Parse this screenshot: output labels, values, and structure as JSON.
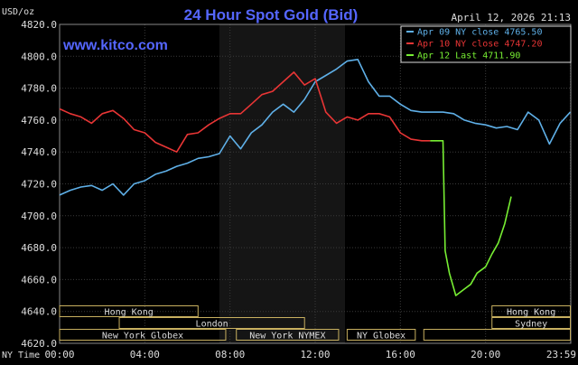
{
  "chart_data": {
    "type": "line",
    "title": "24 Hour Spot Gold (Bid)",
    "watermark": "www.kitco.com",
    "date_label": "April 12, 2026 21:13",
    "ylabel": "USD/oz",
    "xlabel": "NY Time",
    "ylim": [
      4620,
      4820
    ],
    "y_ticks": [
      "4820.0",
      "4800.0",
      "4780.0",
      "4760.0",
      "4740.0",
      "4720.0",
      "4700.0",
      "4680.0",
      "4660.0",
      "4640.0",
      "4620.0"
    ],
    "xlim": [
      0,
      24
    ],
    "x_ticks": [
      {
        "pos": 0,
        "label": "00:00"
      },
      {
        "pos": 4,
        "label": "04:00"
      },
      {
        "pos": 8,
        "label": "08:00"
      },
      {
        "pos": 12,
        "label": "12:00"
      },
      {
        "pos": 16,
        "label": "16:00"
      },
      {
        "pos": 20,
        "label": "20:00"
      },
      {
        "pos": 23.983,
        "label": "23:59"
      }
    ],
    "grid": true,
    "legend_position": "top-right",
    "background": "#000000",
    "plot_background": "#000000",
    "market_shading": [
      {
        "start": 7.5,
        "end": 13.4,
        "color": "#151515"
      }
    ],
    "series": [
      {
        "name": "Apr 09 NY close 4765.50",
        "color": "#5fb0e8",
        "x": [
          0,
          0.5,
          1,
          1.5,
          2,
          2.5,
          3,
          3.5,
          4,
          4.5,
          5,
          5.5,
          6,
          6.5,
          7,
          7.5,
          8,
          8.5,
          9,
          9.5,
          10,
          10.5,
          11,
          11.5,
          12,
          12.5,
          13,
          13.5,
          14,
          14.5,
          15,
          15.5,
          16,
          16.5,
          17,
          17.5,
          18,
          18.5,
          19,
          19.5,
          20,
          20.5,
          21,
          21.5,
          22,
          22.5,
          23,
          23.5,
          23.98
        ],
        "y": [
          4713,
          4716,
          4718,
          4719,
          4716,
          4720,
          4713,
          4720,
          4722,
          4726,
          4728,
          4731,
          4733,
          4736,
          4737,
          4739,
          4750,
          4742,
          4752,
          4757,
          4765,
          4770,
          4765,
          4773,
          4784,
          4788,
          4792,
          4797,
          4798,
          4784,
          4775,
          4775,
          4770,
          4766,
          4765,
          4765,
          4765,
          4764,
          4760,
          4758,
          4757,
          4755,
          4756,
          4754,
          4765,
          4760,
          4745,
          4758,
          4765
        ]
      },
      {
        "name": "Apr 10 NY close 4747.20",
        "color": "#e83535",
        "x": [
          0,
          0.5,
          1,
          1.5,
          2,
          2.5,
          3,
          3.5,
          4,
          4.5,
          5,
          5.5,
          6,
          6.5,
          7,
          7.5,
          8,
          8.5,
          9,
          9.5,
          10,
          10.5,
          11,
          11.5,
          12,
          12.5,
          13,
          13.5,
          14,
          14.5,
          15,
          15.5,
          16,
          16.5,
          17,
          17.4
        ],
        "y": [
          4767,
          4764,
          4762,
          4758,
          4764,
          4766,
          4761,
          4754,
          4752,
          4746,
          4743,
          4740,
          4751,
          4752,
          4757,
          4761,
          4764,
          4764,
          4770,
          4776,
          4778,
          4784,
          4790,
          4782,
          4786,
          4765,
          4758,
          4762,
          4760,
          4764,
          4764,
          4762,
          4752,
          4748,
          4747,
          4747
        ]
      },
      {
        "name": "Apr 12 Last 4711.90",
        "color": "#77ee33",
        "x": [
          17.4,
          18,
          18.1,
          18.3,
          18.6,
          19,
          19.3,
          19.6,
          20,
          20.3,
          20.6,
          20.9,
          21.2
        ],
        "y": [
          4747,
          4747,
          4678,
          4664,
          4650,
          4654,
          4657,
          4664,
          4668,
          4676,
          4683,
          4695,
          4712
        ]
      }
    ],
    "market_rows": [
      [
        {
          "label": "Hong Kong",
          "start": 0,
          "end": 6.5
        },
        {
          "label": "Hong Kong",
          "start": 20.3,
          "end": 23.98
        }
      ],
      [
        {
          "label": "London",
          "start": 2.8,
          "end": 11.5
        },
        {
          "label": "Sydney",
          "start": 20.3,
          "end": 23.98
        }
      ],
      [
        {
          "label": "New York Globex",
          "start": 0,
          "end": 7.8
        },
        {
          "label": "New York NYMEX",
          "start": 8.3,
          "end": 13.1
        },
        {
          "label": "NY Globex",
          "start": 13.5,
          "end": 16.7
        },
        {
          "label": "",
          "start": 17.1,
          "end": 23.98
        }
      ]
    ]
  }
}
